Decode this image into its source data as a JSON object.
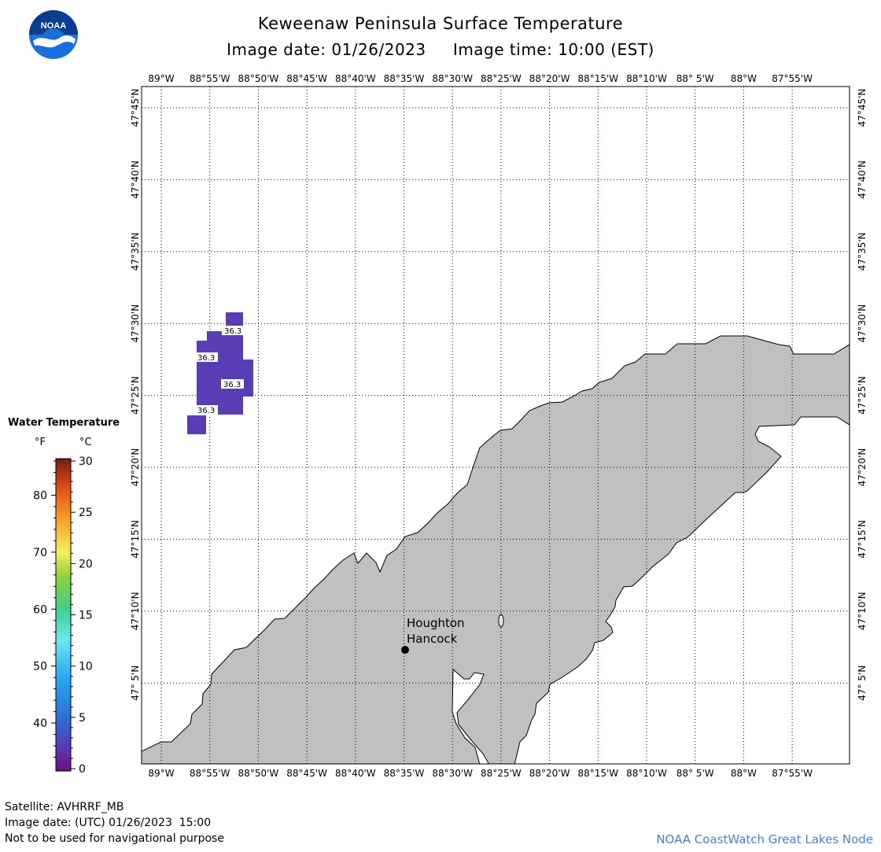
{
  "header": {
    "title": "Keweenaw Peninsula Surface Temperature",
    "image_date_label": "Image date:",
    "image_date": "01/26/2023",
    "image_time_label": "Image time:",
    "image_time": "10:00 (EST)"
  },
  "logo": {
    "text": "NOAA",
    "icon": "noaa-logo-icon",
    "colors": {
      "blue": "#1b6fd8",
      "navy": "#0a3d8f"
    }
  },
  "map": {
    "land_color": "#c0c0c0",
    "water_color": "#ffffff",
    "lon_labels": [
      "89°W",
      "88°55'W",
      "88°50'W",
      "88°45'W",
      "88°40'W",
      "88°35'W",
      "88°30'W",
      "88°25'W",
      "88°20'W",
      "88°15'W",
      "88°10'W",
      "88° 5'W",
      "88°W",
      "87°55'W"
    ],
    "lat_labels": [
      "47°45'N",
      "47°40'N",
      "47°35'N",
      "47°30'N",
      "47°25'N",
      "47°20'N",
      "47°15'N",
      "47°10'N",
      "47° 5'N"
    ],
    "city_label_1": "Houghton",
    "city_label_2": "Hancock",
    "temperature_labels": [
      "36.3",
      "36.3",
      "36.3",
      "36.3"
    ],
    "pixel_color": "#5a3cb4"
  },
  "legend": {
    "title": "Water Temperature",
    "unit_f": "°F",
    "unit_c": "°C",
    "f_ticks": [
      "80",
      "70",
      "60",
      "50",
      "40"
    ],
    "c_ticks": [
      "30",
      "25",
      "20",
      "15",
      "10",
      "5",
      "0"
    ]
  },
  "footer": {
    "satellite": "Satellite: AVHRRF_MB",
    "utc_date": "Image date: (UTC) 01/26/2023  15:00",
    "disclaimer": "Not to be used for navigational purpose",
    "credit": "NOAA CoastWatch Great Lakes Node"
  }
}
